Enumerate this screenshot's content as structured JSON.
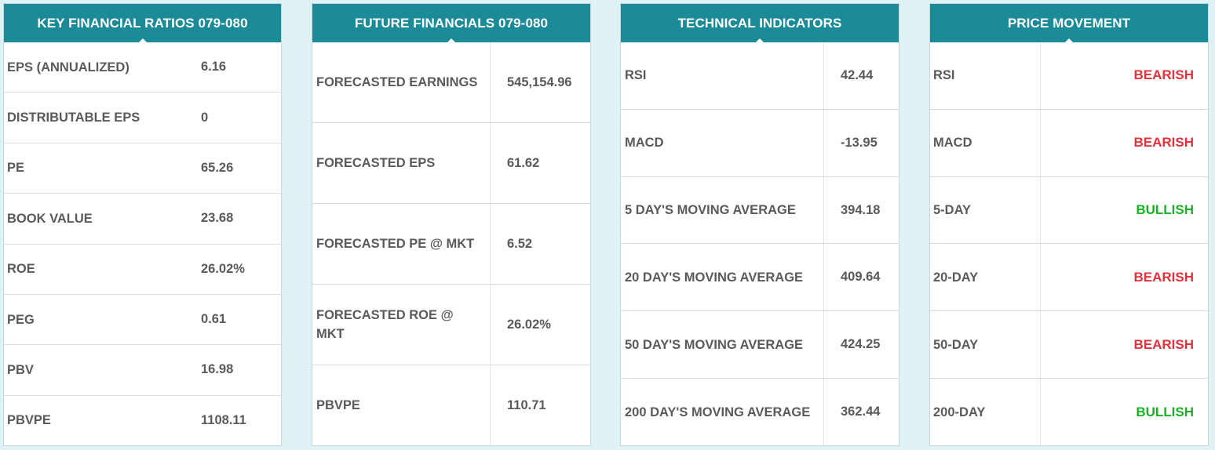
{
  "colors": {
    "header_bg": "#1b8b97",
    "page_bg": "#dff3f7",
    "bearish": "#e8303a",
    "bullish": "#17b323"
  },
  "key_ratios": {
    "title": "KEY FINANCIAL RATIOS 079-080",
    "rows": [
      {
        "label": "EPS (ANNUALIZED)",
        "value": "6.16"
      },
      {
        "label": "DISTRIBUTABLE EPS",
        "value": "0"
      },
      {
        "label": "PE",
        "value": "65.26"
      },
      {
        "label": "BOOK VALUE",
        "value": "23.68"
      },
      {
        "label": "ROE",
        "value": "26.02%"
      },
      {
        "label": "PEG",
        "value": "0.61"
      },
      {
        "label": "PBV",
        "value": "16.98"
      },
      {
        "label": "PBVPE",
        "value": "1108.11"
      }
    ]
  },
  "future_financials": {
    "title": "FUTURE FINANCIALS 079-080",
    "rows": [
      {
        "label": "FORECASTED EARNINGS",
        "value": "545,154.96"
      },
      {
        "label": "FORECASTED EPS",
        "value": "61.62"
      },
      {
        "label": "FORECASTED PE @ MKT",
        "value": "6.52"
      },
      {
        "label": "FORECASTED ROE @ MKT",
        "value": "26.02%"
      },
      {
        "label": "PBVPE",
        "value": "110.71"
      }
    ]
  },
  "technical_indicators": {
    "title": "TECHNICAL INDICATORS",
    "rows": [
      {
        "label": "RSI",
        "value": "42.44"
      },
      {
        "label": "MACD",
        "value": "-13.95"
      },
      {
        "label": "5 DAY'S MOVING AVERAGE",
        "value": "394.18"
      },
      {
        "label": "20 DAY'S MOVING AVERAGE",
        "value": "409.64"
      },
      {
        "label": "50 DAY'S MOVING AVERAGE",
        "value": "424.25"
      },
      {
        "label": "200 DAY'S MOVING AVERAGE",
        "value": "362.44"
      }
    ]
  },
  "price_movement": {
    "title": "PRICE MOVEMENT",
    "rows": [
      {
        "label": "RSI",
        "value": "BEARISH",
        "signal": "bearish"
      },
      {
        "label": "MACD",
        "value": "BEARISH",
        "signal": "bearish"
      },
      {
        "label": "5-DAY",
        "value": "BULLISH",
        "signal": "bullish"
      },
      {
        "label": "20-DAY",
        "value": "BEARISH",
        "signal": "bearish"
      },
      {
        "label": "50-DAY",
        "value": "BEARISH",
        "signal": "bearish"
      },
      {
        "label": "200-DAY",
        "value": "BULLISH",
        "signal": "bullish"
      }
    ]
  }
}
